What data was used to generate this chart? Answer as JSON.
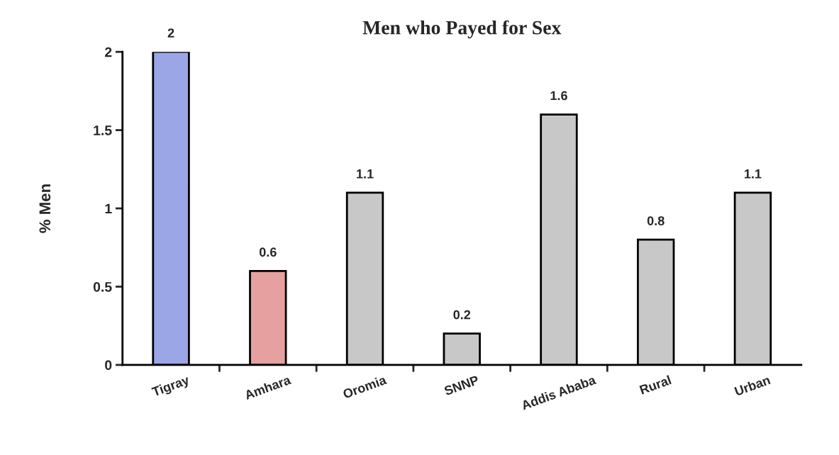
{
  "chart_data": {
    "type": "bar",
    "title": "Men who Payed for Sex",
    "ylabel": "% Men",
    "categories": [
      "Tigray",
      "Amhara",
      "Oromia",
      "SNNP",
      "Addis Ababa",
      "Rural",
      "Urban"
    ],
    "values": [
      2,
      0.6,
      1.1,
      0.2,
      1.6,
      0.8,
      1.1
    ],
    "colors": [
      "#9aa6e6",
      "#e6a0a0",
      "#c8c8c8",
      "#c8c8c8",
      "#c8c8c8",
      "#c8c8c8",
      "#c8c8c8"
    ],
    "ylim": [
      0,
      2
    ],
    "yticks": [
      0,
      0.5,
      1,
      1.5,
      2
    ],
    "data_labels": true,
    "grid": false,
    "legend": false
  }
}
